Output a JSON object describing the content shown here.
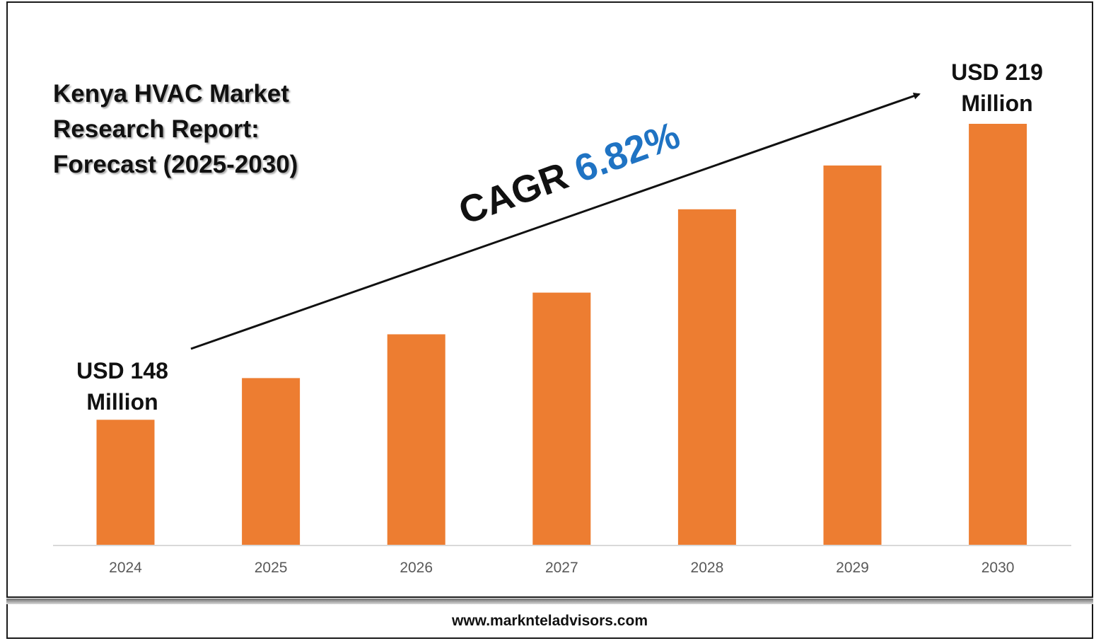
{
  "title_lines": [
    "Kenya HVAC Market",
    "Research Report:",
    "Forecast (2025-2030)"
  ],
  "cagr": {
    "label": "CAGR",
    "value": "6.82%"
  },
  "callouts": {
    "start": {
      "line1": "USD 148",
      "line2": "Million"
    },
    "end": {
      "line1": "USD 219",
      "line2": "Million"
    }
  },
  "footer": {
    "url": "www.marknteladvisors.com"
  },
  "colors": {
    "bar": "#ed7d31",
    "cagr_value": "#1f73c3",
    "axis": "#d9d9d9",
    "tick_text": "#595959"
  },
  "chart_data": {
    "type": "bar",
    "title": "Kenya HVAC Market Research Report: Forecast (2025-2030)",
    "categories": [
      "2024",
      "2025",
      "2026",
      "2027",
      "2028",
      "2029",
      "2030"
    ],
    "series": [
      {
        "values": [
          148,
          158,
          168.5,
          178.5,
          198.5,
          209,
          219
        ]
      }
    ],
    "annotations": [
      "USD 148 Million",
      "USD 219 Million",
      "CAGR 6.82%"
    ],
    "ylim": [
      118,
      219
    ],
    "grid": false,
    "legend": "none"
  }
}
